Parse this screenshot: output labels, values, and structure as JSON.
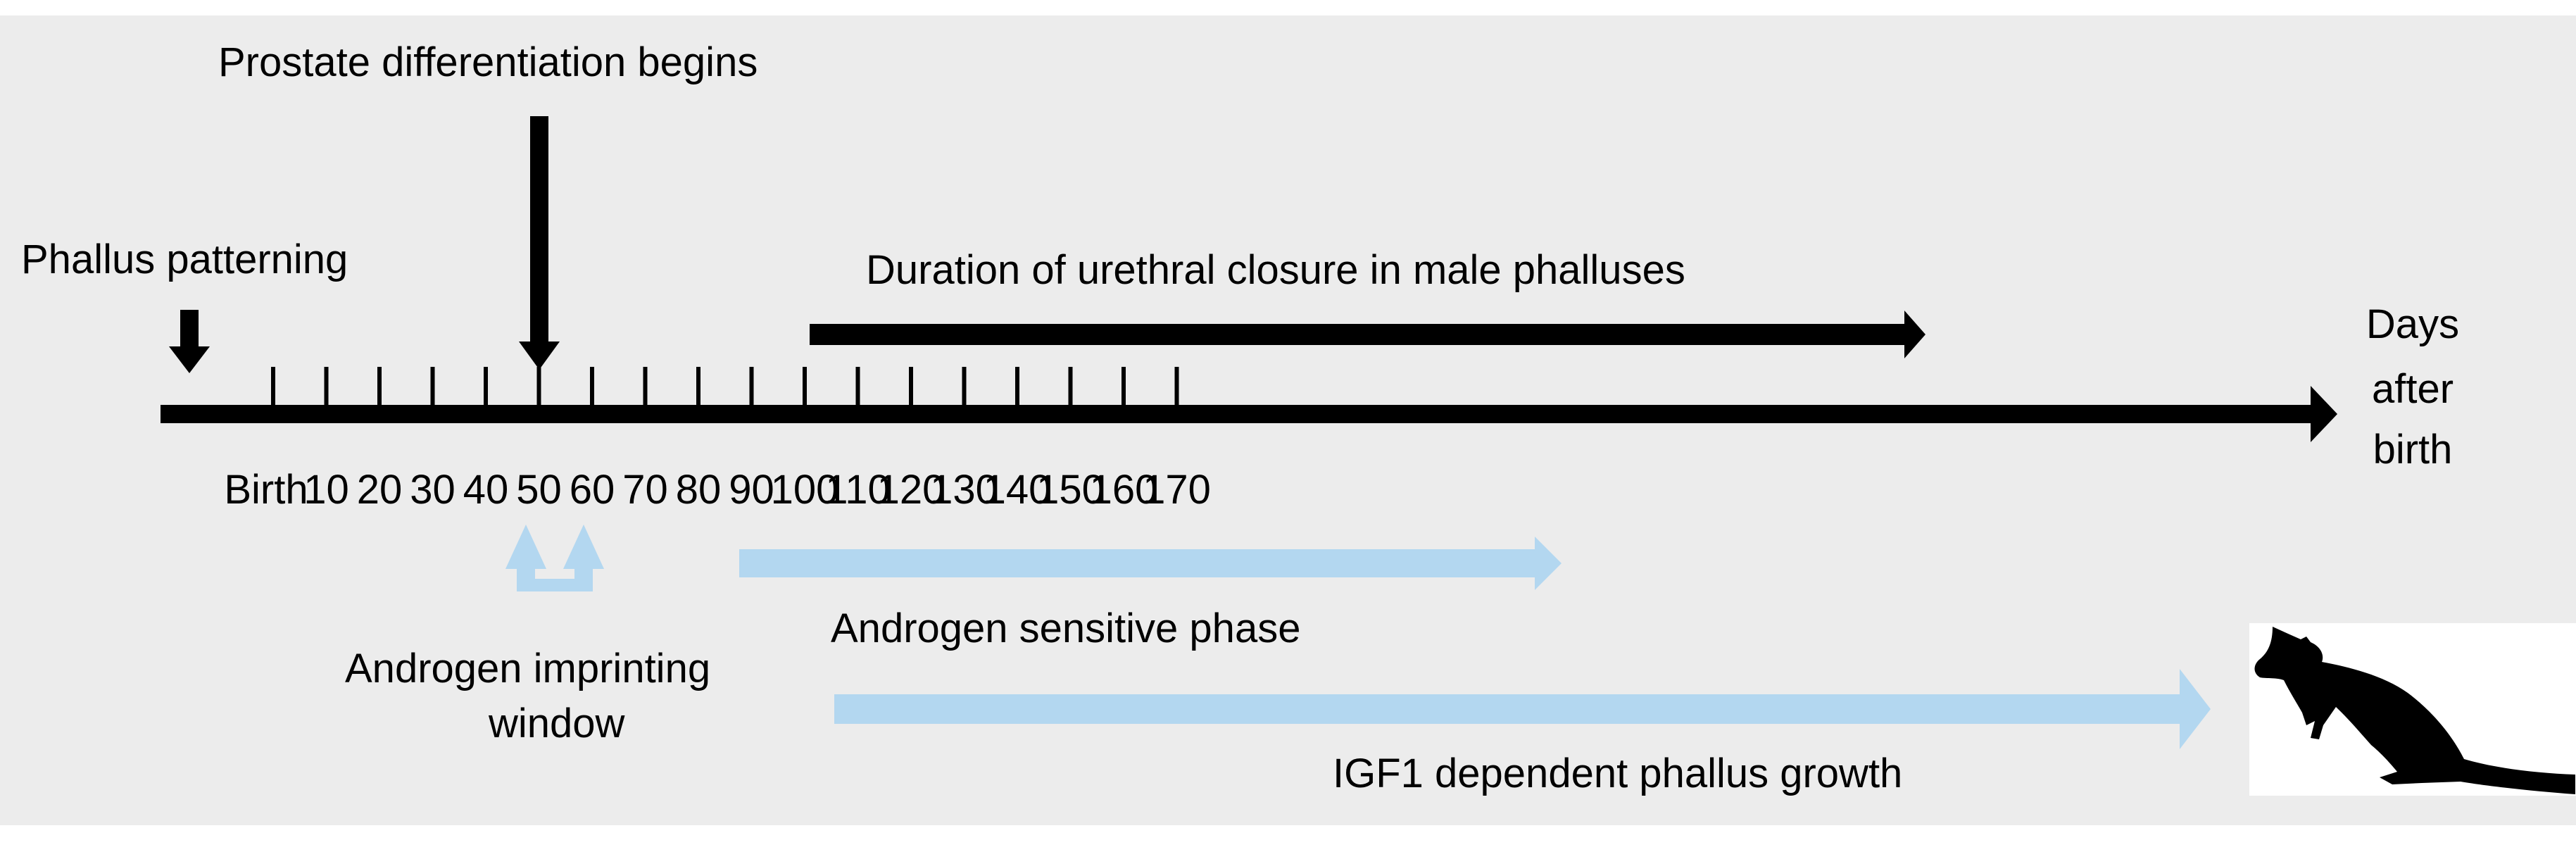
{
  "labels": {
    "phallus_patterning": "Phallus patterning",
    "prostate_differentiation": "Prostate differentiation begins",
    "urethral_closure": "Duration of urethral closure in male phalluses",
    "axis_unit_line1": "Days",
    "axis_unit_line2": "after",
    "axis_unit_line3": "birth",
    "androgen_imprinting_line1": "Androgen imprinting",
    "androgen_imprinting_line2": "window",
    "androgen_sensitive": "Androgen sensitive phase",
    "igf1_growth": "IGF1 dependent phallus growth"
  },
  "ticks": [
    "Birth",
    "10",
    "20",
    "30",
    "40",
    "50",
    "60",
    "70",
    "80",
    "90",
    "100",
    "110",
    "120",
    "130",
    "140",
    "150",
    "160",
    "170"
  ],
  "colors": {
    "background": "#ececec",
    "black": "#000000",
    "light_blue": "#b3d7f0",
    "white": "#ffffff"
  },
  "icons": {
    "animal": "wallaby-silhouette-icon"
  }
}
